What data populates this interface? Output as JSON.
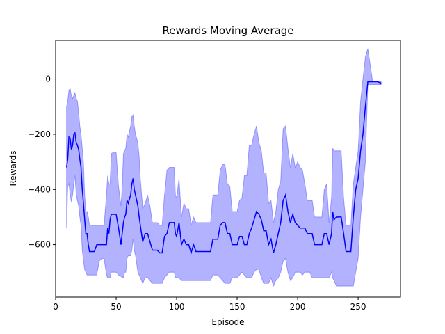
{
  "chart_data": {
    "type": "line",
    "title": "Rewards Moving Average",
    "xlabel": "Episode",
    "ylabel": "Rewards",
    "xlim": [
      0,
      285
    ],
    "ylim": [
      -790,
      140
    ],
    "xticks": [
      0,
      50,
      100,
      150,
      200,
      250
    ],
    "yticks": [
      0,
      -200,
      -400,
      -600
    ],
    "grid": false,
    "legend": "none",
    "colors": {
      "line": "#0000ff",
      "band": "#0000ff",
      "band_opacity": 0.3
    },
    "series": [
      {
        "x": [
          9,
          10,
          11,
          12,
          13,
          14,
          15,
          16,
          17,
          18,
          19,
          20,
          21,
          22,
          23,
          24,
          25,
          26,
          27,
          28,
          30,
          32,
          34,
          36,
          38,
          40,
          42,
          43,
          44,
          45,
          46,
          48,
          50,
          52,
          54,
          55,
          56,
          57,
          58,
          59,
          60,
          62,
          63,
          64,
          65,
          66,
          68,
          69,
          70,
          72,
          74,
          76,
          78,
          80,
          82,
          84,
          86,
          88,
          90,
          92,
          94,
          96,
          98,
          99,
          100,
          102,
          104,
          106,
          108,
          110,
          112,
          114,
          116,
          118,
          120,
          124,
          128,
          130,
          132,
          134,
          136,
          138,
          140,
          142,
          144,
          146,
          148,
          150,
          152,
          154,
          156,
          158,
          160,
          162,
          164,
          166,
          168,
          170,
          172,
          174,
          176,
          178,
          180,
          182,
          184,
          186,
          188,
          190,
          192,
          194,
          196,
          198,
          200,
          202,
          204,
          206,
          208,
          210,
          212,
          214,
          216,
          218,
          220,
          222,
          224,
          226,
          228,
          229,
          230,
          232,
          236,
          238,
          240,
          242,
          244,
          246,
          248,
          250,
          252,
          254,
          256,
          258,
          262,
          266,
          269
        ],
        "mean": [
          -320,
          -290,
          -210,
          -215,
          -255,
          -240,
          -200,
          -195,
          -230,
          -240,
          -255,
          -290,
          -320,
          -400,
          -450,
          -510,
          -560,
          -560,
          -600,
          -625,
          -625,
          -625,
          -600,
          -600,
          -600,
          -600,
          -600,
          -540,
          -560,
          -510,
          -490,
          -490,
          -490,
          -540,
          -600,
          -560,
          -520,
          -500,
          -490,
          -440,
          -450,
          -420,
          -380,
          -360,
          -400,
          -420,
          -460,
          -500,
          -530,
          -590,
          -560,
          -560,
          -590,
          -620,
          -620,
          -620,
          -630,
          -630,
          -570,
          -560,
          -520,
          -520,
          -520,
          -560,
          -570,
          -520,
          -600,
          -580,
          -600,
          -600,
          -630,
          -600,
          -625,
          -625,
          -625,
          -625,
          -625,
          -580,
          -580,
          -580,
          -530,
          -520,
          -520,
          -560,
          -560,
          -600,
          -600,
          -600,
          -570,
          -570,
          -600,
          -600,
          -560,
          -540,
          -510,
          -480,
          -490,
          -510,
          -550,
          -550,
          -600,
          -580,
          -630,
          -600,
          -560,
          -520,
          -440,
          -420,
          -480,
          -520,
          -490,
          -520,
          -530,
          -540,
          -540,
          -540,
          -560,
          -560,
          -560,
          -600,
          -600,
          -600,
          -600,
          -560,
          -560,
          -600,
          -560,
          -480,
          -510,
          -500,
          -500,
          -560,
          -625,
          -625,
          -625,
          -500,
          -400,
          -360,
          -260,
          -200,
          -100,
          -10,
          -10,
          -10,
          -15
        ],
        "lower": [
          -540,
          -390,
          -380,
          -420,
          -445,
          -420,
          -380,
          -350,
          -420,
          -440,
          -460,
          -500,
          -530,
          -620,
          -660,
          -690,
          -700,
          -710,
          -710,
          -710,
          -710,
          -710,
          -710,
          -660,
          -650,
          -650,
          -710,
          -720,
          -720,
          -720,
          -700,
          -700,
          -700,
          -710,
          -715,
          -720,
          -720,
          -700,
          -700,
          -650,
          -640,
          -640,
          -620,
          -580,
          -620,
          -640,
          -700,
          -710,
          -720,
          -740,
          -720,
          -720,
          -730,
          -740,
          -740,
          -740,
          -740,
          -740,
          -720,
          -710,
          -700,
          -700,
          -700,
          -720,
          -720,
          -720,
          -730,
          -730,
          -730,
          -730,
          -730,
          -730,
          -730,
          -730,
          -730,
          -730,
          -730,
          -710,
          -710,
          -710,
          -720,
          -730,
          -740,
          -740,
          -740,
          -720,
          -720,
          -720,
          -710,
          -700,
          -710,
          -720,
          -720,
          -720,
          -700,
          -690,
          -690,
          -720,
          -740,
          -740,
          -740,
          -720,
          -750,
          -730,
          -720,
          -700,
          -660,
          -650,
          -700,
          -730,
          -720,
          -700,
          -700,
          -700,
          -710,
          -700,
          -700,
          -700,
          -720,
          -720,
          -720,
          -720,
          -720,
          -720,
          -720,
          -720,
          -700,
          -720,
          -730,
          -750,
          -750,
          -750,
          -750,
          -750,
          -750,
          -750,
          -700,
          -650,
          -500,
          -400,
          -300,
          -20,
          -20,
          -20,
          -20
        ],
        "upper": [
          -100,
          -80,
          -40,
          -35,
          -60,
          -70,
          -60,
          -50,
          -70,
          -80,
          -120,
          -170,
          -200,
          -250,
          -300,
          -420,
          -480,
          -480,
          -500,
          -530,
          -530,
          -530,
          -530,
          -530,
          -530,
          -530,
          -420,
          -350,
          -380,
          -380,
          -270,
          -265,
          -265,
          -390,
          -460,
          -390,
          -270,
          -260,
          -250,
          -200,
          -210,
          -170,
          -135,
          -130,
          -170,
          -200,
          -230,
          -280,
          -360,
          -470,
          -450,
          -420,
          -460,
          -520,
          -520,
          -520,
          -530,
          -530,
          -420,
          -330,
          -320,
          -320,
          -320,
          -420,
          -430,
          -360,
          -500,
          -450,
          -470,
          -470,
          -530,
          -500,
          -520,
          -520,
          -520,
          -520,
          -520,
          -420,
          -420,
          -420,
          -330,
          -310,
          -310,
          -380,
          -390,
          -480,
          -480,
          -480,
          -440,
          -430,
          -350,
          -350,
          -240,
          -240,
          -200,
          -170,
          -230,
          -260,
          -340,
          -340,
          -450,
          -440,
          -520,
          -480,
          -400,
          -370,
          -180,
          -170,
          -250,
          -320,
          -270,
          -320,
          -300,
          -320,
          -330,
          -380,
          -440,
          -440,
          -440,
          -500,
          -500,
          -500,
          -500,
          -400,
          -380,
          -520,
          -430,
          -250,
          -260,
          -260,
          -260,
          -430,
          -530,
          -530,
          -530,
          -380,
          -320,
          -260,
          -80,
          0,
          80,
          110,
          -10,
          -10,
          -10
        ]
      }
    ]
  }
}
